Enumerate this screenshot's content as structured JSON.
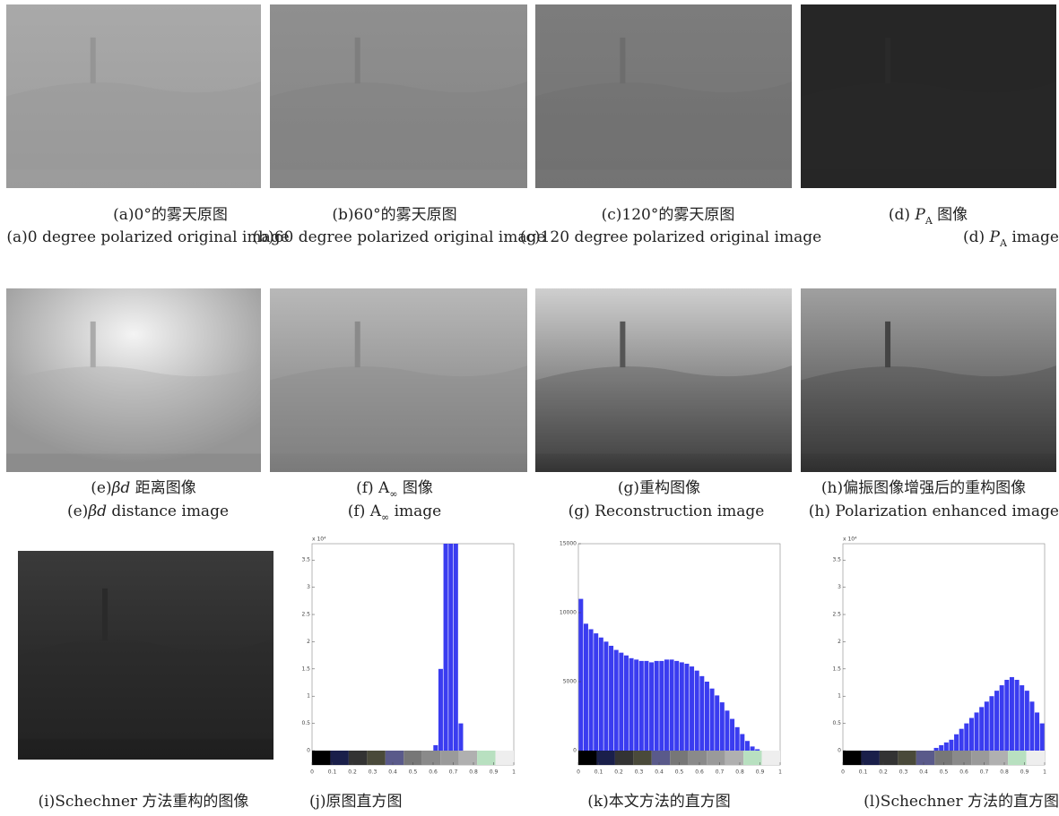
{
  "panels": [
    {
      "caption_cn": [
        "(a)0°的雾天原图"
      ],
      "caption_en": [
        "(a)0 degree polarized original image"
      ]
    },
    {
      "caption_cn": [
        "(b)60°的雾天原图"
      ],
      "caption_en": [
        "(b)60 degree polarized original image"
      ]
    },
    {
      "caption_cn": [
        "(c)120°的雾天原图"
      ],
      "caption_en": [
        "(c)120 degree polarized original image"
      ]
    },
    {
      "caption_cn": [
        "(d) ",
        {
          "text": "P",
          "style": "italic"
        },
        {
          "text": "A",
          "style": "sub"
        },
        " 图像"
      ],
      "caption_en": [
        "(d) ",
        {
          "text": "P",
          "style": "italic"
        },
        {
          "text": "A",
          "style": "sub"
        },
        " image"
      ]
    },
    {
      "caption_cn": [
        "(e)",
        {
          "text": "βd",
          "style": "italic"
        },
        " 距离图像"
      ],
      "caption_en": [
        "(e)",
        {
          "text": "βd",
          "style": "italic"
        },
        " distance image"
      ]
    },
    {
      "caption_cn": [
        "(f) A",
        {
          "text": "∞",
          "style": "sub"
        },
        " 图像"
      ],
      "caption_en": [
        "(f) A",
        {
          "text": "∞",
          "style": "sub"
        },
        "  image"
      ]
    },
    {
      "caption_cn": [
        "(g)重构图像"
      ],
      "caption_en": [
        "(g) Reconstruction image"
      ]
    },
    {
      "caption_cn": [
        "(h)偏振图像增强后的重构图像"
      ],
      "caption_en": [
        "(h) Polarization enhanced image"
      ]
    },
    {
      "caption_cn": [
        "(i)Schechner 方法重构的图像"
      ]
    },
    {
      "caption_cn": [
        "(j)原图直方图"
      ]
    },
    {
      "caption_cn": [
        "(k)本文方法的直方图"
      ]
    },
    {
      "caption_cn": [
        "(l)Schechner 方法的直方图"
      ]
    }
  ],
  "chart_data": [
    {
      "type": "bar",
      "color": "#3a3cf0",
      "y_multiplier": "x 10⁴",
      "xlim": [
        0,
        1
      ],
      "ylim": [
        0,
        3.8
      ],
      "xticks": [
        0,
        0.1,
        0.2,
        0.3,
        0.4,
        0.5,
        0.6,
        0.7,
        0.8,
        0.9,
        1
      ],
      "yticks": [
        0,
        0.5,
        1,
        1.5,
        2,
        2.5,
        3,
        3.5
      ],
      "values": [
        0,
        0,
        0,
        0,
        0,
        0,
        0,
        0,
        0,
        0,
        0,
        0,
        0,
        0,
        0,
        0,
        0,
        0,
        0,
        0,
        0,
        0,
        0,
        0,
        0.1,
        1.5,
        3.8,
        3.8,
        3.8,
        0.5,
        0,
        0,
        0,
        0,
        0,
        0,
        0,
        0,
        0,
        0
      ]
    },
    {
      "type": "bar",
      "color": "#3a3cf0",
      "xlim": [
        0,
        1
      ],
      "ylim": [
        0,
        15000
      ],
      "xticks": [
        0,
        0.1,
        0.2,
        0.3,
        0.4,
        0.5,
        0.6,
        0.7,
        0.8,
        0.9,
        1
      ],
      "yticks": [
        0,
        5000,
        10000,
        15000
      ],
      "values": [
        11000,
        9200,
        8800,
        8500,
        8200,
        7900,
        7600,
        7300,
        7100,
        6900,
        6700,
        6600,
        6500,
        6500,
        6400,
        6500,
        6500,
        6600,
        6600,
        6500,
        6400,
        6300,
        6100,
        5800,
        5400,
        5000,
        4500,
        4000,
        3500,
        2900,
        2300,
        1700,
        1200,
        700,
        300,
        100,
        0,
        0,
        0,
        0
      ]
    },
    {
      "type": "bar",
      "color": "#3a3cf0",
      "y_multiplier": "x 10⁴",
      "xlim": [
        0,
        1
      ],
      "ylim": [
        0,
        3.8
      ],
      "xticks": [
        0,
        0.1,
        0.2,
        0.3,
        0.4,
        0.5,
        0.6,
        0.7,
        0.8,
        0.9,
        1
      ],
      "yticks": [
        0,
        0.5,
        1,
        1.5,
        2,
        2.5,
        3,
        3.5
      ],
      "values": [
        0,
        0,
        0,
        0,
        0,
        0,
        0,
        0,
        0,
        0,
        0,
        0,
        0,
        0,
        0,
        0,
        0,
        0,
        0.05,
        0.1,
        0.15,
        0.2,
        0.3,
        0.4,
        0.5,
        0.6,
        0.7,
        0.8,
        0.9,
        1.0,
        1.1,
        1.2,
        1.3,
        1.35,
        1.3,
        1.2,
        1.1,
        0.9,
        0.7,
        0.5
      ]
    }
  ]
}
